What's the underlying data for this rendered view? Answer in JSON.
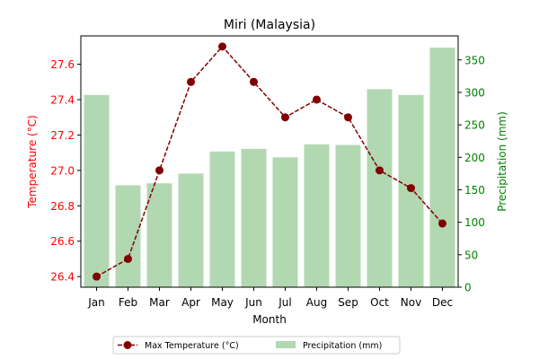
{
  "chart_data": {
    "type": "bar+line",
    "title": "Miri (Malaysia)",
    "xlabel": "Month",
    "ylabel_left": "Temperature (°C)",
    "ylabel_right": "Precipitation (mm)",
    "categories": [
      "Jan",
      "Feb",
      "Mar",
      "Apr",
      "May",
      "Jun",
      "Jul",
      "Aug",
      "Sep",
      "Oct",
      "Nov",
      "Dec"
    ],
    "temperature": {
      "name": "Max Temperature (°C)",
      "type": "line",
      "axis": "left",
      "color": "#800000",
      "values": [
        26.4,
        26.5,
        27.0,
        27.5,
        27.7,
        27.5,
        27.3,
        27.4,
        27.3,
        27.0,
        26.9,
        26.7
      ]
    },
    "precipitation": {
      "name": "Precipitation (mm)",
      "type": "bar",
      "axis": "right",
      "color": "#b2d8b2",
      "values": [
        296,
        157,
        160,
        175,
        209,
        213,
        200,
        220,
        219,
        305,
        296,
        369
      ]
    },
    "ylim_left": [
      26.34,
      27.76
    ],
    "yticks_left": [
      "26.4",
      "26.6",
      "26.8",
      "27.0",
      "27.2",
      "27.4",
      "27.6"
    ],
    "ylim_right": [
      0,
      387
    ],
    "yticks_right": [
      "0",
      "50",
      "100",
      "150",
      "200",
      "250",
      "300",
      "350"
    ],
    "left_axis_color": "#ff0000",
    "right_axis_color": "#008000",
    "grid": false,
    "legend_placement": "bottom-center"
  }
}
